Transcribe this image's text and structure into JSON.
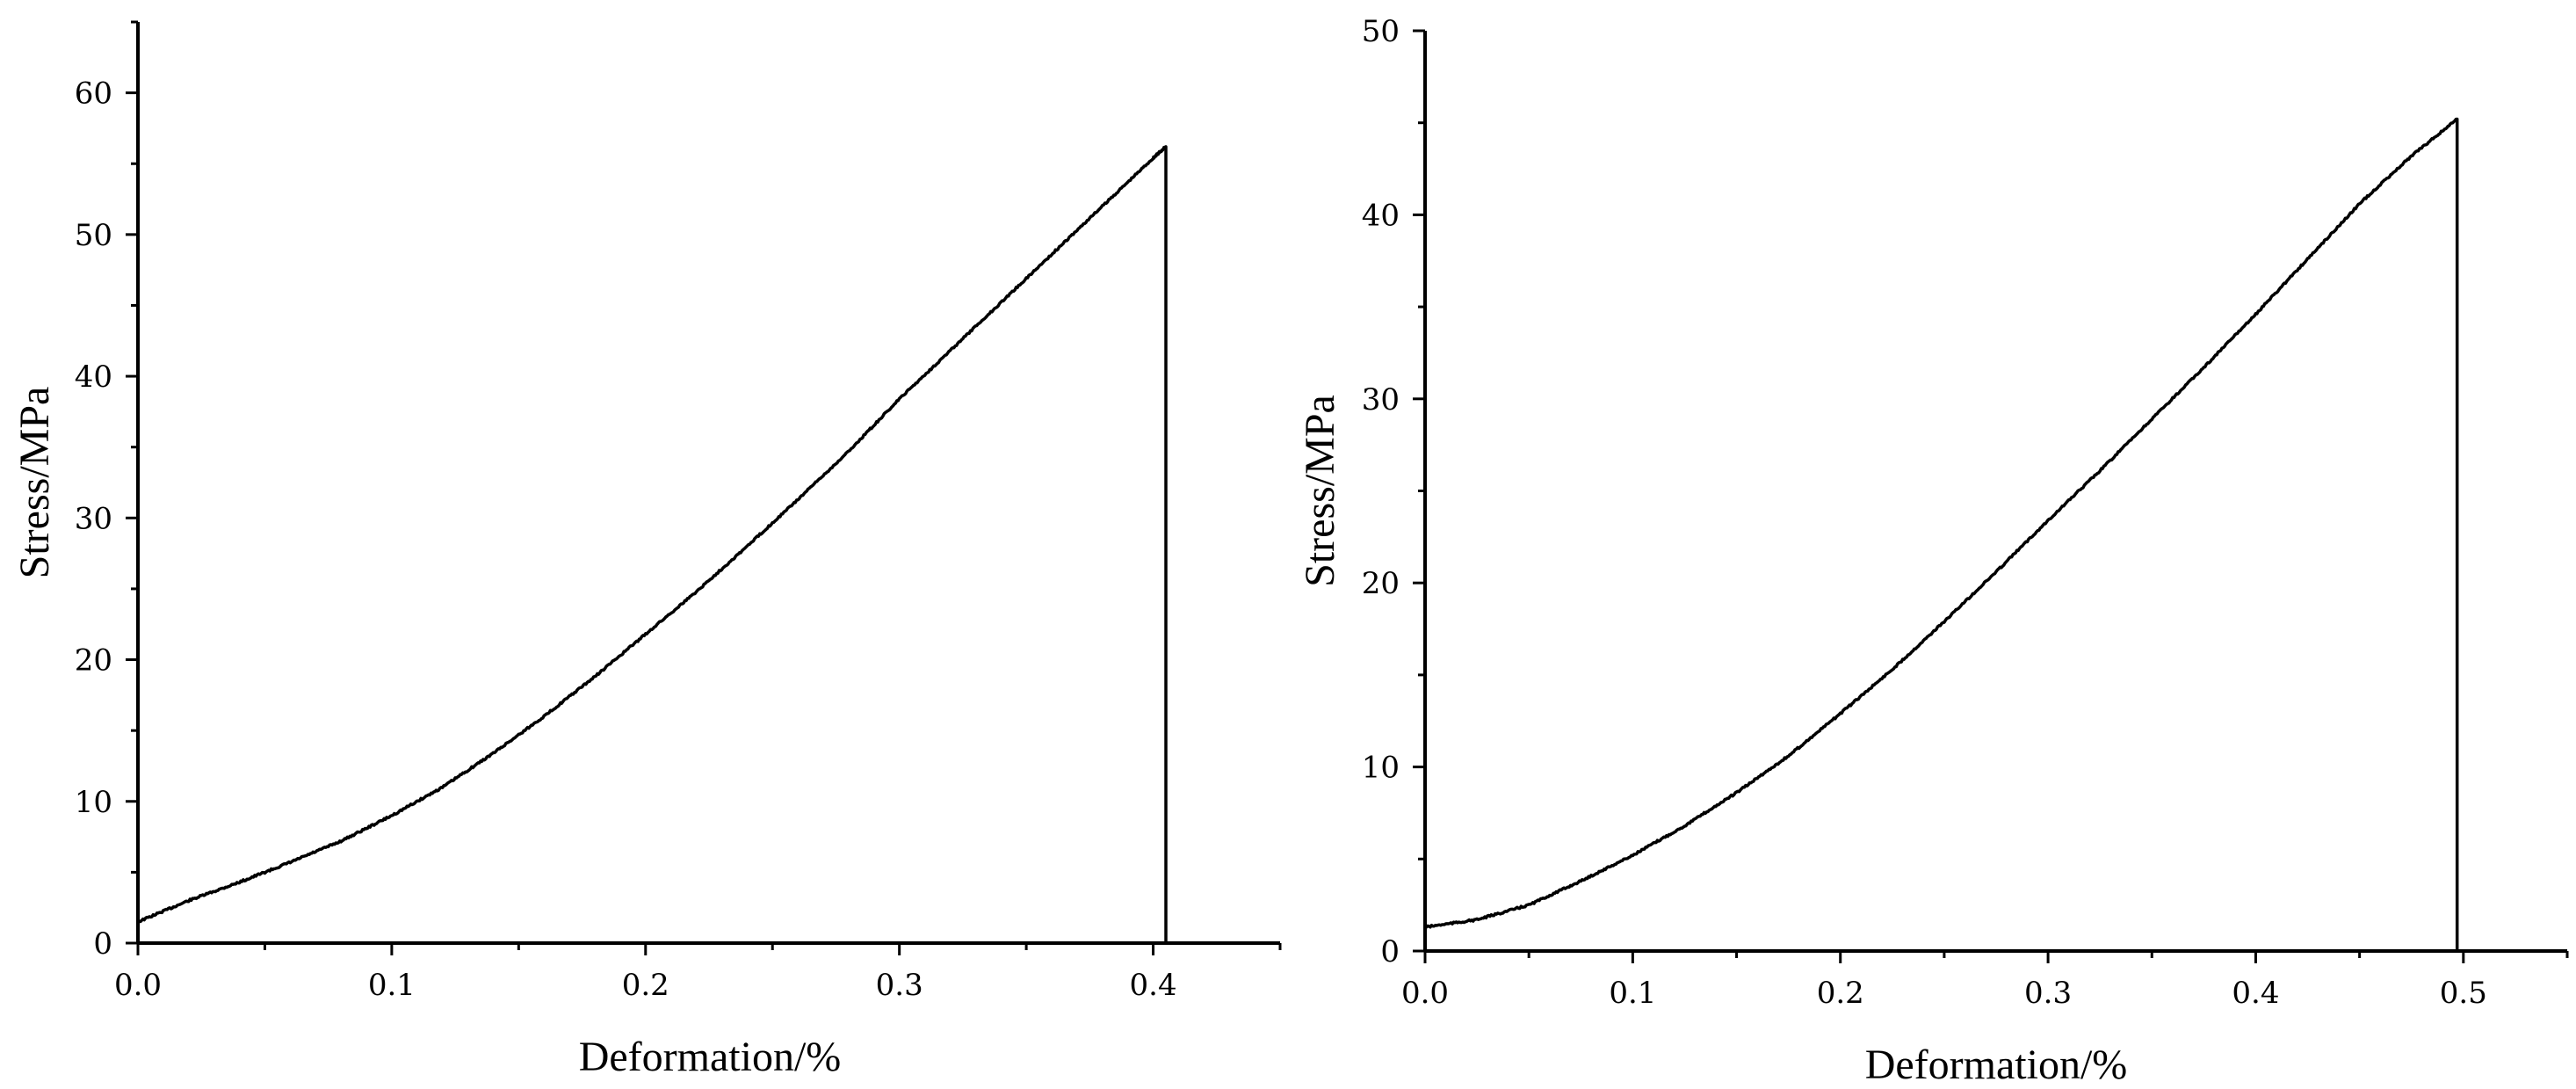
{
  "chart_data": [
    {
      "type": "line",
      "xlabel": "Deformation/%",
      "ylabel": "Stress/MPa",
      "xlim": [
        0,
        0.45
      ],
      "ylim": [
        0,
        65
      ],
      "x_ticks": [
        0,
        0.1,
        0.2,
        0.3,
        0.4
      ],
      "x_tick_labels": [
        "0.0",
        "0.1",
        "0.2",
        "0.3",
        "0.4"
      ],
      "y_ticks": [
        0,
        10,
        20,
        30,
        40,
        50,
        60
      ],
      "y_tick_labels": [
        "0",
        "10",
        "20",
        "30",
        "40",
        "50",
        "60"
      ],
      "x_minor_step": 0.05,
      "y_minor_step": 5,
      "grid": false,
      "series": [
        {
          "color": "#000000",
          "x": [
            0,
            0.02,
            0.04,
            0.06,
            0.08,
            0.1,
            0.12,
            0.14,
            0.16,
            0.18,
            0.2,
            0.22,
            0.24,
            0.26,
            0.28,
            0.3,
            0.32,
            0.34,
            0.36,
            0.38,
            0.4,
            0.405,
            0.405
          ],
          "y": [
            1.5,
            3.0,
            4.3,
            5.7,
            7.2,
            9.0,
            11.0,
            13.4,
            16.0,
            18.8,
            21.8,
            24.8,
            28.0,
            31.3,
            34.7,
            38.4,
            41.8,
            45.2,
            48.6,
            52.0,
            55.4,
            56.2,
            0
          ]
        }
      ]
    },
    {
      "type": "line",
      "xlabel": "Deformation/%",
      "ylabel": "Stress/MPa",
      "xlim": [
        0,
        0.55
      ],
      "ylim": [
        0,
        50
      ],
      "x_ticks": [
        0,
        0.1,
        0.2,
        0.3,
        0.4,
        0.5
      ],
      "x_tick_labels": [
        "0.0",
        "0.1",
        "0.2",
        "0.3",
        "0.4",
        "0.5"
      ],
      "y_ticks": [
        0,
        10,
        20,
        30,
        40,
        50
      ],
      "y_tick_labels": [
        "0",
        "10",
        "20",
        "30",
        "40",
        "50"
      ],
      "x_minor_step": 0.05,
      "y_minor_step": 5,
      "grid": false,
      "series": [
        {
          "color": "#000000",
          "x": [
            0,
            0.025,
            0.05,
            0.075,
            0.1,
            0.125,
            0.15,
            0.175,
            0.2,
            0.225,
            0.25,
            0.275,
            0.3,
            0.325,
            0.35,
            0.375,
            0.4,
            0.425,
            0.45,
            0.475,
            0.497,
            0.497,
            0.497
          ],
          "y": [
            1.3,
            1.7,
            2.5,
            3.8,
            5.2,
            6.8,
            8.6,
            10.6,
            12.9,
            15.3,
            17.9,
            20.6,
            23.4,
            26.1,
            28.9,
            31.7,
            34.6,
            37.6,
            40.6,
            43.2,
            45.2,
            22.5,
            0
          ]
        }
      ]
    }
  ]
}
